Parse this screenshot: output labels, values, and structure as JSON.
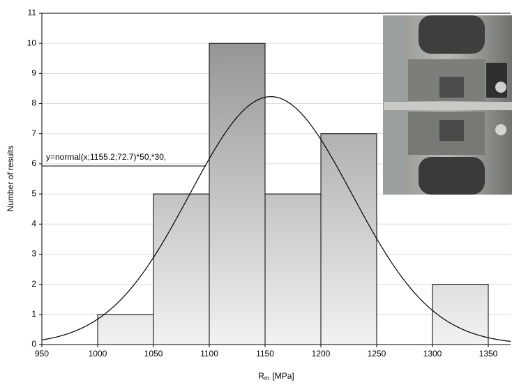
{
  "chart_data": {
    "type": "histogram",
    "bins": [
      1000,
      1050,
      1100,
      1150,
      1200,
      1250,
      1300,
      1350
    ],
    "values": [
      1,
      5,
      10,
      5,
      7,
      0,
      2
    ],
    "xlim": [
      950,
      1370
    ],
    "xticks": [
      950,
      1000,
      1050,
      1100,
      1150,
      1200,
      1250,
      1300,
      1350
    ],
    "ylim": [
      0,
      11
    ],
    "yticks": [
      0,
      1,
      2,
      3,
      4,
      5,
      6,
      7,
      8,
      9,
      10,
      11
    ],
    "grid": true,
    "y_label": "Number of results",
    "x_label_parts": [
      "R",
      "m",
      "[MPa]"
    ],
    "curve": {
      "mean": 1155.2,
      "sd": 72.7,
      "bin_width": 50,
      "n": 30,
      "color": "#000000"
    },
    "annotation": "y=normal(x;1155.2;72.7)*50,*30,"
  }
}
